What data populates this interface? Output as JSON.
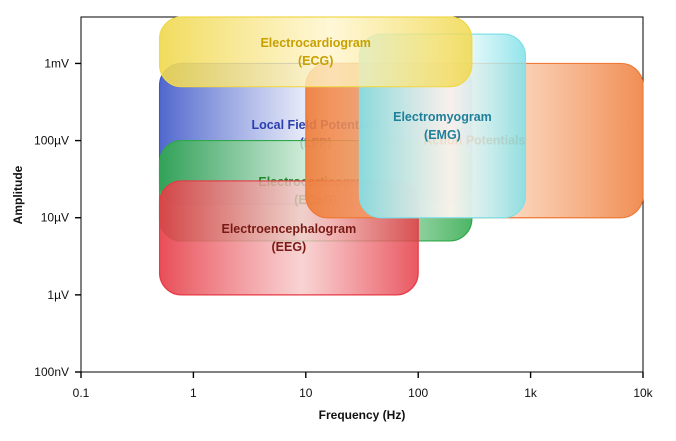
{
  "chart_data": {
    "type": "range-diagram",
    "x_axis": {
      "label": "Frequency (Hz)",
      "scale": "log",
      "range_hz": [
        0.1,
        10000
      ],
      "ticks": [
        {
          "value": 0.1,
          "label": "0.1"
        },
        {
          "value": 1,
          "label": "1"
        },
        {
          "value": 10,
          "label": "10"
        },
        {
          "value": 100,
          "label": "100"
        },
        {
          "value": 1000,
          "label": "1k"
        },
        {
          "value": 10000,
          "label": "10k"
        }
      ]
    },
    "y_axis": {
      "label": "Amplitude",
      "scale": "log",
      "range_volts": [
        1e-07,
        0.004
      ],
      "ticks": [
        {
          "value": 1e-07,
          "label": "100nV"
        },
        {
          "value": 1e-06,
          "label": "1µV"
        },
        {
          "value": 1e-05,
          "label": "10µV"
        },
        {
          "value": 0.0001,
          "label": "100µV"
        },
        {
          "value": 0.001,
          "label": "1mV"
        }
      ]
    },
    "regions": [
      {
        "name_lines": [
          "Local Field Potentials",
          "(LFP)"
        ],
        "freq_hz": [
          0.5,
          300
        ],
        "amp_v": [
          1.5e-05,
          0.001
        ],
        "colors": [
          "#3d57c8",
          "#ffffff"
        ],
        "text_color": "#2c3fb0"
      },
      {
        "name_lines": [
          "Electrocorticogram",
          "(ECoG)"
        ],
        "freq_hz": [
          0.5,
          300
        ],
        "amp_v": [
          5e-06,
          0.0001
        ],
        "colors": [
          "#2ea84a",
          "#e6f8e8"
        ],
        "text_color": "#1e8a2e"
      },
      {
        "name_lines": [
          "Electroencephalogram",
          "(EEG)"
        ],
        "freq_hz": [
          0.5,
          100
        ],
        "amp_v": [
          1e-06,
          3e-05
        ],
        "colors": [
          "#e63a45",
          "#f7c7c7"
        ],
        "text_color": "#7a1a14"
      },
      {
        "name_lines": [
          "Action Potentials"
        ],
        "freq_hz": [
          10,
          10000
        ],
        "amp_v": [
          1e-05,
          0.001
        ],
        "colors": [
          "#ee7a36",
          "#fcd9bf"
        ],
        "text_color": "#e0621a"
      },
      {
        "name_lines": [
          "Electromyogram",
          "(EMG)"
        ],
        "freq_hz": [
          30,
          900
        ],
        "amp_v": [
          1e-05,
          0.0024
        ],
        "colors": [
          "#7fe0e8",
          "#ffffff"
        ],
        "text_color": "#20809a"
      },
      {
        "name_lines": [
          "Electrocardiogram",
          "(ECG)"
        ],
        "freq_hz": [
          0.5,
          300
        ],
        "amp_v": [
          0.0005,
          0.004
        ],
        "colors": [
          "#f0d84c",
          "#fff5cc"
        ],
        "text_color": "#c8a000"
      }
    ]
  }
}
